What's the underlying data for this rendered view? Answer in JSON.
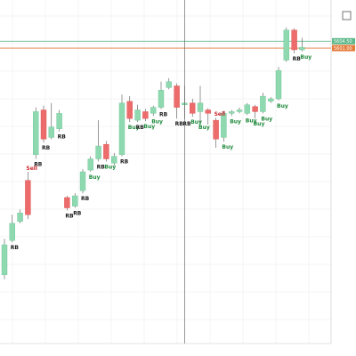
{
  "chart_data": {
    "type": "candlestick",
    "title": "",
    "colors": {
      "up": "#8fd9b0",
      "up_border": "#6cc396",
      "down": "#ec6b6b",
      "down_border": "#e05353",
      "wick": "#333333",
      "grid": "#e4e4e4",
      "level_green": "#5cb88a",
      "level_orange": "#e57a3a",
      "crosshair": "#555555"
    },
    "ylim": [
      0,
      400
    ],
    "candles": [
      {
        "o": 80,
        "c": 115,
        "h": 122,
        "l": 75
      },
      {
        "o": 120,
        "c": 140,
        "h": 150,
        "l": 118
      },
      {
        "o": 142,
        "c": 152,
        "h": 156,
        "l": 140
      },
      {
        "o": 190,
        "c": 150,
        "h": 200,
        "l": 145
      },
      {
        "o": 220,
        "c": 270,
        "h": 275,
        "l": 215
      },
      {
        "o": 272,
        "c": 238,
        "h": 277,
        "l": 234
      },
      {
        "o": 240,
        "c": 252,
        "h": 280,
        "l": 238
      },
      {
        "o": 250,
        "c": 268,
        "h": 272,
        "l": 247
      },
      {
        "o": 170,
        "c": 158,
        "h": 172,
        "l": 155
      },
      {
        "o": 160,
        "c": 172,
        "h": 175,
        "l": 158
      },
      {
        "o": 178,
        "c": 200,
        "h": 203,
        "l": 175
      },
      {
        "o": 202,
        "c": 215,
        "h": 218,
        "l": 200
      },
      {
        "o": 215,
        "c": 230,
        "h": 260,
        "l": 212
      },
      {
        "o": 232,
        "c": 215,
        "h": 236,
        "l": 212
      },
      {
        "o": 210,
        "c": 218,
        "h": 222,
        "l": 207
      },
      {
        "o": 220,
        "c": 280,
        "h": 290,
        "l": 218
      },
      {
        "o": 282,
        "c": 262,
        "h": 288,
        "l": 258
      },
      {
        "o": 260,
        "c": 272,
        "h": 278,
        "l": 258
      },
      {
        "o": 270,
        "c": 262,
        "h": 273,
        "l": 259
      },
      {
        "o": 268,
        "c": 275,
        "h": 277,
        "l": 265
      },
      {
        "o": 275,
        "c": 295,
        "h": 305,
        "l": 273
      },
      {
        "o": 298,
        "c": 305,
        "h": 309,
        "l": 296
      },
      {
        "o": 300,
        "c": 275,
        "h": 303,
        "l": 262
      },
      {
        "o": 278,
        "c": 280,
        "h": 300,
        "l": 262
      },
      {
        "o": 280,
        "c": 268,
        "h": 285,
        "l": 264
      },
      {
        "o": 270,
        "c": 280,
        "h": 300,
        "l": 258
      },
      {
        "o": 272,
        "c": 268,
        "h": 274,
        "l": 255
      },
      {
        "o": 260,
        "c": 238,
        "h": 263,
        "l": 228
      },
      {
        "o": 240,
        "c": 268,
        "h": 271,
        "l": 235
      },
      {
        "o": 268,
        "c": 270,
        "h": 272,
        "l": 265
      },
      {
        "o": 270,
        "c": 272,
        "h": 275,
        "l": 268
      },
      {
        "o": 268,
        "c": 278,
        "h": 280,
        "l": 266
      },
      {
        "o": 276,
        "c": 270,
        "h": 278,
        "l": 262
      },
      {
        "o": 270,
        "c": 288,
        "h": 292,
        "l": 268
      },
      {
        "o": 282,
        "c": 285,
        "h": 287,
        "l": 280
      },
      {
        "o": 285,
        "c": 318,
        "h": 322,
        "l": 283
      },
      {
        "o": 330,
        "c": 365,
        "h": 368,
        "l": 328
      },
      {
        "o": 365,
        "c": 342,
        "h": 367,
        "l": 338
      },
      {
        "o": 342,
        "c": 345,
        "h": 356,
        "l": 340
      }
    ],
    "signals": [
      {
        "bar": 1,
        "text": "RB",
        "type": "other"
      },
      {
        "bar": 3,
        "text": "Sell",
        "type": "sell"
      },
      {
        "bar": 4,
        "text": "RB",
        "type": "other"
      },
      {
        "bar": 5,
        "text": "RB",
        "type": "other"
      },
      {
        "bar": 7,
        "text": "RB",
        "type": "other"
      },
      {
        "bar": 8,
        "text": "RB",
        "type": "other"
      },
      {
        "bar": 9,
        "text": "RB",
        "type": "other"
      },
      {
        "bar": 10,
        "text": "RB",
        "type": "other"
      },
      {
        "bar": 11,
        "text": "Buy",
        "type": "buy"
      },
      {
        "bar": 12,
        "text": "RB",
        "type": "other"
      },
      {
        "bar": 13,
        "text": "Buy",
        "type": "buy"
      },
      {
        "bar": 15,
        "text": "RB",
        "type": "other"
      },
      {
        "bar": 16,
        "text": "Buy",
        "type": "buy"
      },
      {
        "bar": 17,
        "text": "RB",
        "type": "other"
      },
      {
        "bar": 18,
        "text": "Buy",
        "type": "buy"
      },
      {
        "bar": 19,
        "text": "Buy",
        "type": "buy"
      },
      {
        "bar": 20,
        "text": "RB",
        "type": "other"
      },
      {
        "bar": 22,
        "text": "RB",
        "type": "other"
      },
      {
        "bar": 23,
        "text": "RB",
        "type": "other"
      },
      {
        "bar": 24,
        "text": "Buy",
        "type": "buy"
      },
      {
        "bar": 25,
        "text": "Buy",
        "type": "buy"
      },
      {
        "bar": 27,
        "text": "Sell",
        "type": "sell"
      },
      {
        "bar": 28,
        "text": "Buy",
        "type": "buy"
      },
      {
        "bar": 29,
        "text": "Buy",
        "type": "buy"
      },
      {
        "bar": 31,
        "text": "Buy",
        "type": "buy"
      },
      {
        "bar": 32,
        "text": "Buy",
        "type": "buy"
      },
      {
        "bar": 33,
        "text": "Buy",
        "type": "buy"
      },
      {
        "bar": 35,
        "text": "Buy",
        "type": "buy"
      },
      {
        "bar": 37,
        "text": "RB",
        "type": "other"
      },
      {
        "bar": 38,
        "text": "Buy",
        "type": "buy"
      }
    ],
    "levels": [
      {
        "value": 352,
        "color": "#5cb88a",
        "label": "5604.50"
      },
      {
        "value": 344,
        "color": "#e57a3a",
        "label": "5601.00"
      }
    ],
    "crosshair_bar": 23,
    "x_tick_labels": [
      "",
      "",
      "",
      "",
      "",
      "",
      "",
      "",
      "",
      ""
    ],
    "y_tick_labels": [
      "",
      "",
      "",
      "",
      "",
      "",
      "",
      "",
      "",
      "",
      "",
      ""
    ]
  }
}
